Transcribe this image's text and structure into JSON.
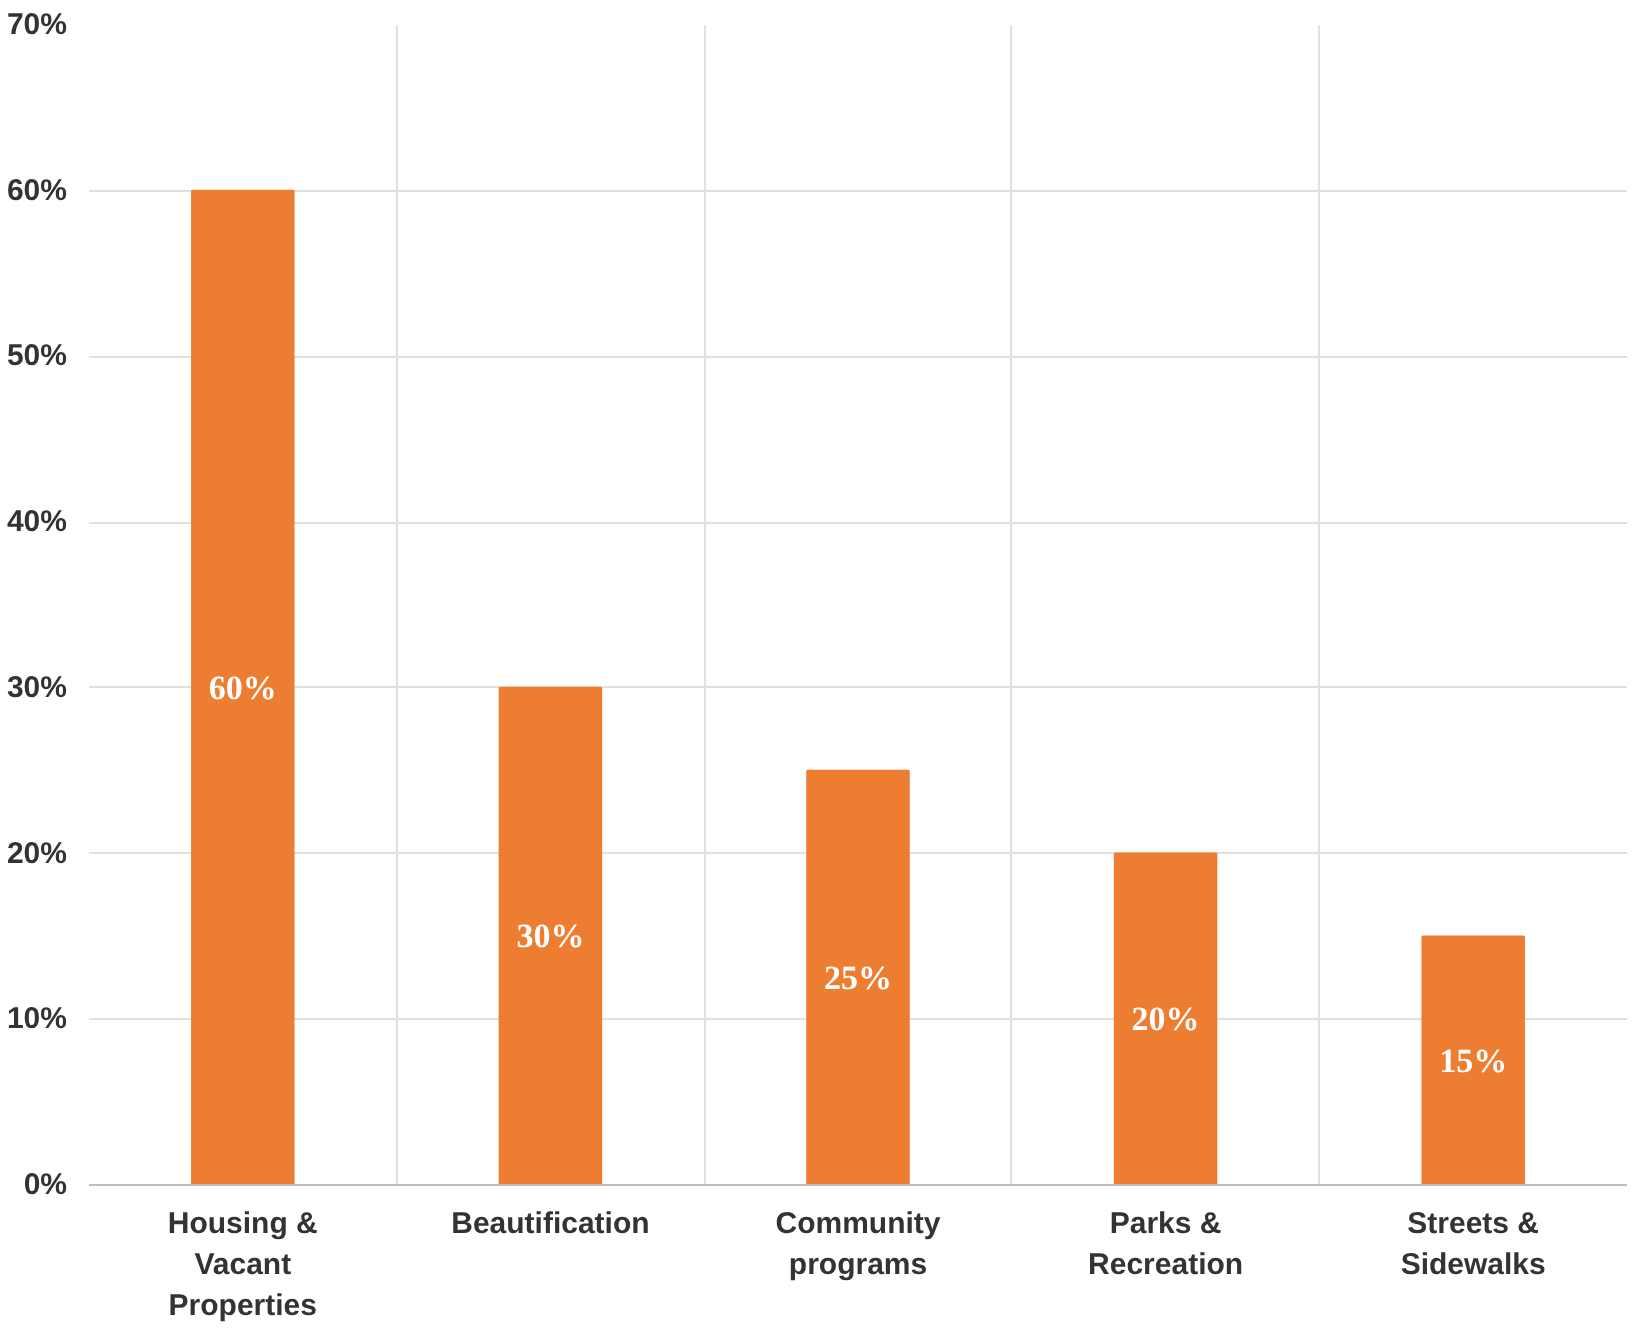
{
  "chart_data": {
    "type": "bar",
    "categories": [
      "Housing & Vacant Properties",
      "Beautification",
      "Community programs",
      "Parks & Recreation",
      "Streets & Sidewalks"
    ],
    "values": [
      60,
      30,
      25,
      20,
      15
    ],
    "value_labels": [
      "60%",
      "30%",
      "25%",
      "20%",
      "15%"
    ],
    "color": "#ed7d31",
    "ylim": [
      0,
      70
    ],
    "yticks": [
      {
        "value": 0,
        "label": "0%"
      },
      {
        "value": 10,
        "label": "10%"
      },
      {
        "value": 20,
        "label": "20%"
      },
      {
        "value": 30,
        "label": "30%"
      },
      {
        "value": 40,
        "label": "40%"
      },
      {
        "value": 50,
        "label": "50%"
      },
      {
        "value": 60,
        "label": "60%"
      },
      {
        "value": 70,
        "label": "70%"
      }
    ],
    "grid": true
  }
}
